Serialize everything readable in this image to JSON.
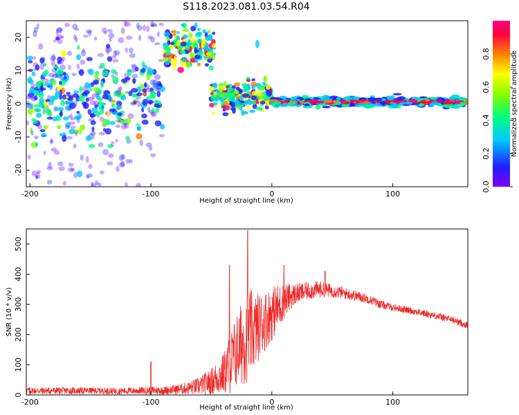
{
  "figure": {
    "title": "S118.2023.081.03.54.R04"
  },
  "chart_data": [
    {
      "type": "heatmap",
      "xlabel": "Height of straight line (km)",
      "ylabel": "Frequency (Hz)",
      "xlim": [
        -203,
        162
      ],
      "ylim": [
        -25,
        25
      ],
      "xticks": [
        "-200",
        "-100",
        "0",
        "100"
      ],
      "yticks": [
        "-20",
        "-10",
        "0",
        "10",
        "20"
      ],
      "colorbar": {
        "label": "Normalized spectral amplitude",
        "range": [
          0,
          1
        ],
        "ticks": [
          "0.0",
          "0.2",
          "0.4",
          "0.6",
          "0.8"
        ],
        "colormap": [
          "#7f00ff",
          "#1f1fff",
          "#00c8ff",
          "#00ff80",
          "#80ff00",
          "#ffff00",
          "#ff8000",
          "#ff0040",
          "#ff0080"
        ]
      },
      "regions": [
        {
          "x": [
            -203,
            -90
          ],
          "f_center": 3,
          "f_spread": 6,
          "amplitude": 0.25,
          "note_scatter": "weak speckle across full band"
        },
        {
          "x": [
            -88,
            -48
          ],
          "f_center": 17,
          "f_spread": 3,
          "amplitude": 0.45
        },
        {
          "x": [
            -50,
            0
          ],
          "f_center": 2,
          "f_spread": 2,
          "amplitude": 0.35
        },
        {
          "x": [
            0,
            162
          ],
          "f_center": 0.6,
          "f_spread": 0.6,
          "amplitude": 0.9
        }
      ],
      "grid": false
    },
    {
      "type": "line",
      "xlabel": "Height of straight line (km)",
      "ylabel": "SNR (10 * v/v)",
      "xlim": [
        -203,
        162
      ],
      "ylim": [
        0,
        550
      ],
      "xticks": [
        "-200",
        "-100",
        "0",
        "100"
      ],
      "yticks": [
        "0",
        "100",
        "200",
        "300",
        "400",
        "500"
      ],
      "color": "#ee2a2a",
      "envelope": {
        "x": [
          -203,
          -190,
          -170,
          -150,
          -130,
          -110,
          -100,
          -90,
          -80,
          -70,
          -60,
          -50,
          -40,
          -35,
          -30,
          -25,
          -20,
          -15,
          -10,
          -5,
          0,
          5,
          10,
          15,
          20,
          30,
          40,
          50,
          60,
          70,
          80,
          90,
          100,
          110,
          120,
          130,
          140,
          150,
          162
        ],
        "mean": [
          15,
          14,
          14,
          14,
          13,
          14,
          15,
          15,
          18,
          22,
          30,
          45,
          70,
          100,
          140,
          170,
          200,
          210,
          230,
          250,
          270,
          290,
          310,
          325,
          335,
          345,
          350,
          345,
          337,
          328,
          318,
          300,
          290,
          283,
          275,
          267,
          258,
          248,
          230
        ],
        "noise": [
          12,
          12,
          12,
          11,
          11,
          12,
          14,
          14,
          16,
          20,
          30,
          45,
          70,
          100,
          120,
          140,
          160,
          130,
          110,
          100,
          90,
          80,
          60,
          45,
          35,
          30,
          28,
          22,
          20,
          18,
          16,
          14,
          12,
          12,
          12,
          12,
          12,
          12,
          12
        ]
      },
      "peaks": [
        {
          "x": -100,
          "y": 110
        },
        {
          "x": -20,
          "y": 545
        },
        {
          "x": -35,
          "y": 430
        },
        {
          "x": 10,
          "y": 430
        },
        {
          "x": 44,
          "y": 410
        }
      ],
      "grid": false
    }
  ]
}
